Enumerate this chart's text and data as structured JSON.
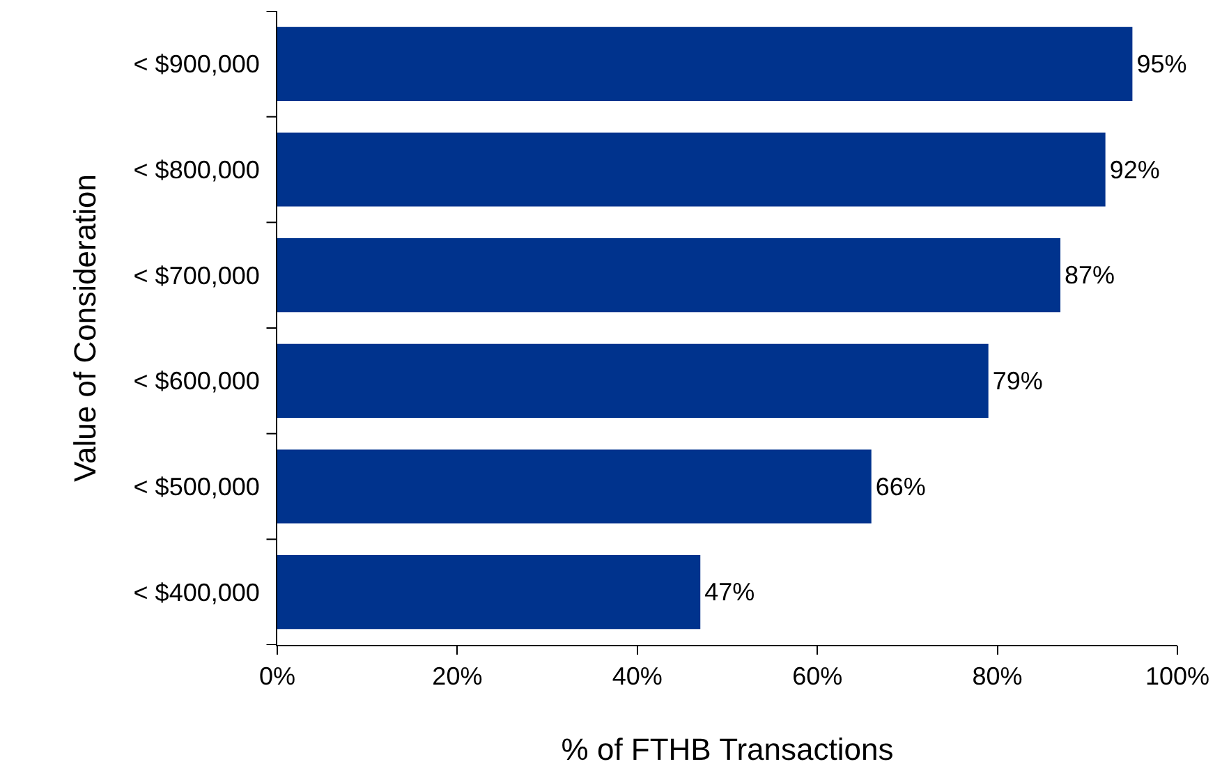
{
  "chart_data": {
    "type": "bar",
    "orientation": "horizontal",
    "xlabel": "% of FTHB Transactions",
    "ylabel": "Value of Consideration",
    "categories": [
      "< $900,000",
      "< $800,000",
      "< $700,000",
      "< $600,000",
      "< $500,000",
      "< $400,000"
    ],
    "values": [
      95,
      92,
      87,
      79,
      66,
      47
    ],
    "value_labels": [
      "95%",
      "92%",
      "87%",
      "79%",
      "66%",
      "47%"
    ],
    "color": "#00338d",
    "xlim": [
      0,
      100
    ],
    "xticks": [
      {
        "value": 0,
        "label": "0%"
      },
      {
        "value": 20,
        "label": "20%"
      },
      {
        "value": 40,
        "label": "40%"
      },
      {
        "value": 60,
        "label": "60%"
      },
      {
        "value": 80,
        "label": "80%"
      },
      {
        "value": 100,
        "label": "100%"
      }
    ],
    "grid": false
  }
}
